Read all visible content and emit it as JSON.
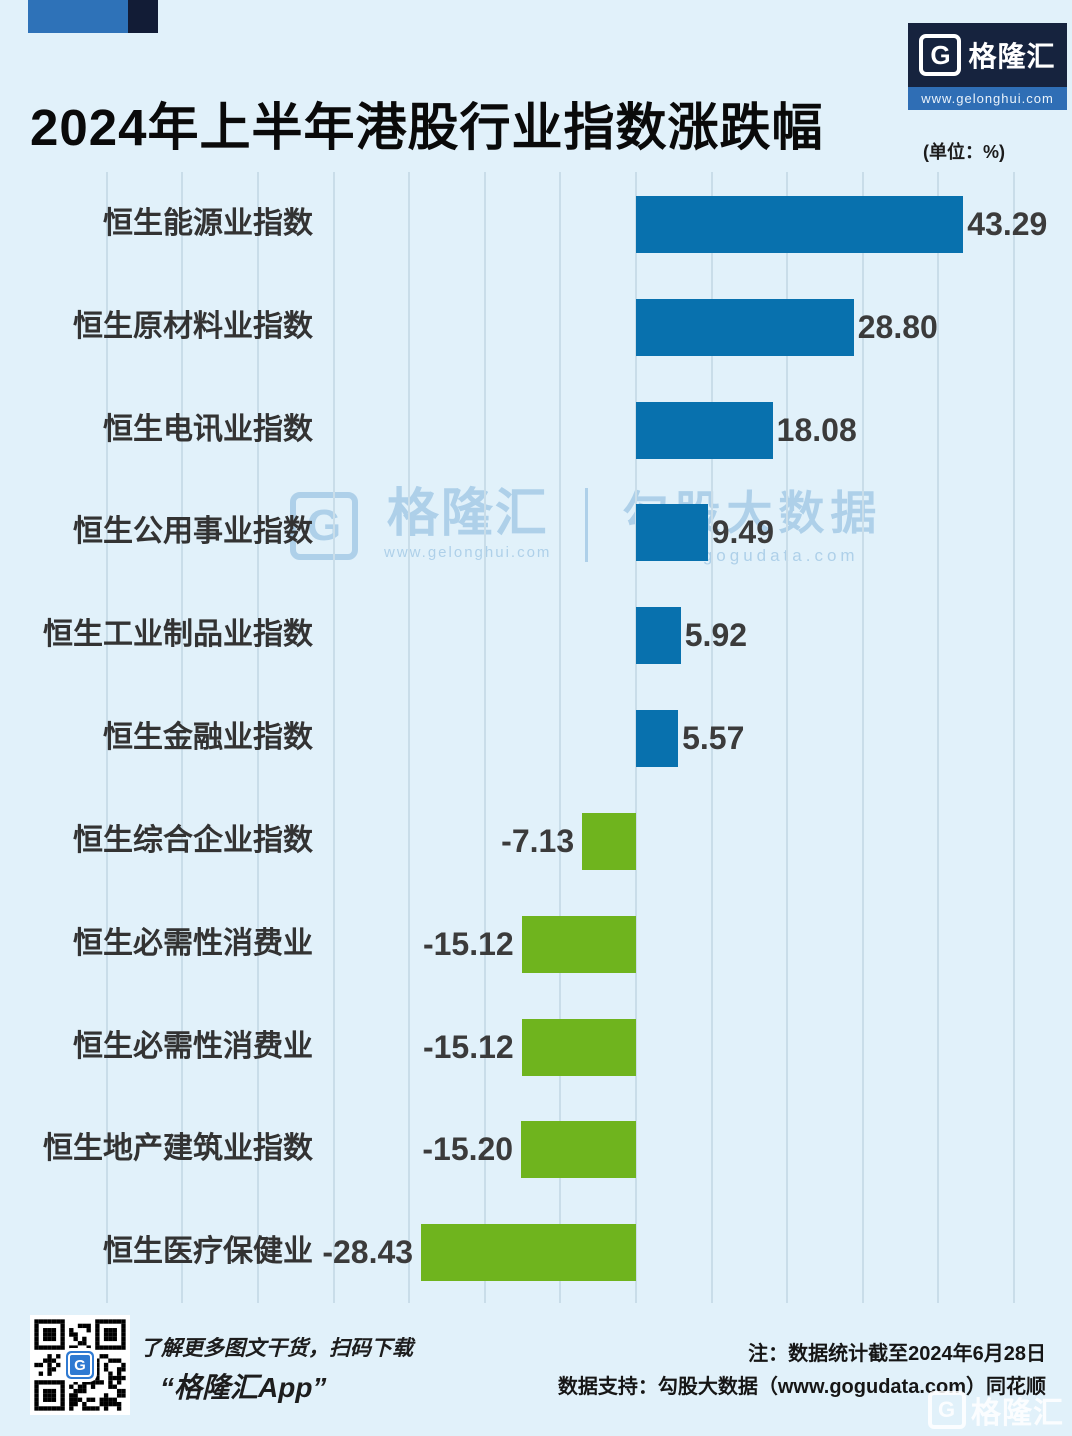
{
  "header": {
    "title": "2024年上半年港股行业指数涨跌幅",
    "unit_label": "(单位：%)",
    "logo": {
      "g": "G",
      "brand": "格隆汇",
      "url": "www.gelonghui.com"
    }
  },
  "chart_data": {
    "type": "bar",
    "orientation": "horizontal",
    "title": "2024年上半年港股行业指数涨跌幅",
    "unit": "%",
    "categories": [
      "恒生能源业指数",
      "恒生原材料业指数",
      "恒生电讯业指数",
      "恒生公用事业指数",
      "恒生工业制品业指数",
      "恒生金融业指数",
      "恒生综合企业指数",
      "恒生必需性消费业",
      "恒生必需性消费业",
      "恒生地产建筑业指数",
      "恒生医疗保健业"
    ],
    "values": [
      43.29,
      28.8,
      18.08,
      9.49,
      5.92,
      5.57,
      -7.13,
      -15.12,
      -15.12,
      -15.2,
      -28.43
    ],
    "value_labels": [
      "43.29",
      "28.80",
      "18.08",
      "9.49",
      "5.92",
      "5.57",
      "-7.13",
      "-15.12",
      "-15.12",
      "-15.20",
      "-28.43"
    ],
    "xlim": [
      -70,
      50
    ],
    "grid_step": 10,
    "grid": true,
    "positive_color": "#0871ae",
    "negative_color": "#6fb41e",
    "background_color": "#e1f1fa",
    "gridline_color": "#c9dde9"
  },
  "watermark": {
    "g": "G",
    "glh_name": "格隆汇",
    "glh_url": "www.gelonghui.com",
    "ggd_name": "勾股大数据",
    "ggd_url": "www.gogudata.com"
  },
  "footer": {
    "qr_caption_line1": "了解更多图文干货，扫码下载",
    "qr_caption_line2": "“格隆汇App”",
    "note_line1": "注：数据统计截至2024年6月28日",
    "note_line2": "数据支持：勾股大数据（www.gogudata.com）同花顺",
    "corner_logo_g": "G",
    "corner_logo_text": "格隆汇"
  }
}
